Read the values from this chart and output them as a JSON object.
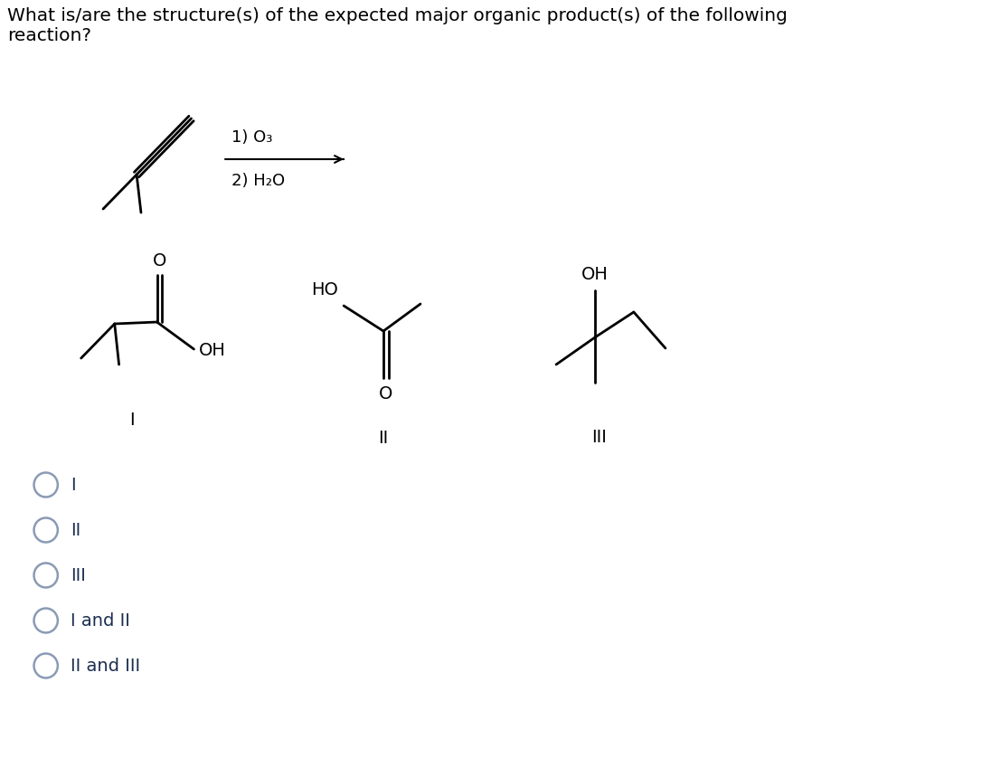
{
  "background_color": "#ffffff",
  "title_text": "What is/are the structure(s) of the expected major organic product(s) of the following\nreaction?",
  "title_fontsize": 14.5,
  "reaction_conditions_above": "1) O₃",
  "reaction_conditions_below": "2) H₂O",
  "structure_labels": [
    "I",
    "II",
    "III"
  ],
  "choices": [
    "I",
    "II",
    "III",
    "I and II",
    "II and III"
  ],
  "line_color": "#000000",
  "text_color": "#1c2f50",
  "choice_circle_color": "#8a9bb5",
  "font_size": 14,
  "mol_lw": 2.0,
  "chem_font_size": 13
}
